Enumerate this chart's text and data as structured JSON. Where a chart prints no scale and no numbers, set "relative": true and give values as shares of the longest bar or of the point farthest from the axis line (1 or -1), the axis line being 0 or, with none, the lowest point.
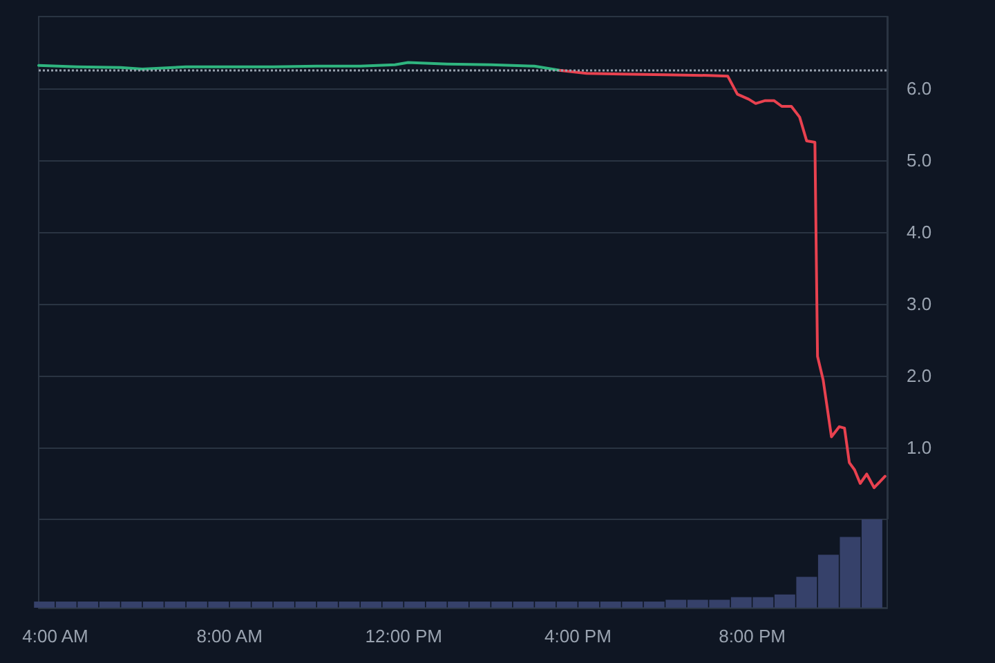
{
  "chart_data": [
    {
      "type": "line",
      "xlim": [
        3.62,
        23.1
      ],
      "ylim": [
        0,
        7
      ],
      "yticks": [
        {
          "value": 1,
          "label": "1.0"
        },
        {
          "value": 2,
          "label": "2.0"
        },
        {
          "value": 3,
          "label": "3.0"
        },
        {
          "value": 4,
          "label": "4.0"
        },
        {
          "value": 5,
          "label": "5.0"
        },
        {
          "value": 6,
          "label": "6.0"
        }
      ],
      "tick_labels": "y",
      "grid": "y",
      "marker": "none",
      "line_style": "solid",
      "series": [
        {
          "color": "#2fb57f",
          "x": [
            3.62,
            4.5,
            5.5,
            6.0,
            7.0,
            8.0,
            9.0,
            10.0,
            11.0,
            11.8,
            12.1,
            13.0,
            14.0,
            15.0,
            15.6
          ],
          "values": [
            6.32,
            6.3,
            6.29,
            6.27,
            6.3,
            6.3,
            6.3,
            6.31,
            6.31,
            6.33,
            6.36,
            6.34,
            6.33,
            6.31,
            6.25
          ]
        },
        {
          "color": "#e8414f",
          "x": [
            15.6,
            16.2,
            17.0,
            18.0,
            19.0,
            19.44,
            19.66,
            19.92,
            20.08,
            20.3,
            20.5,
            20.68,
            20.9,
            21.09,
            21.25,
            21.44,
            21.5,
            21.63,
            21.82,
            22.0,
            22.12,
            22.23,
            22.35,
            22.48,
            22.63,
            22.8,
            23.05
          ],
          "values": [
            6.25,
            6.21,
            6.2,
            6.19,
            6.18,
            6.17,
            5.92,
            5.85,
            5.79,
            5.83,
            5.83,
            5.75,
            5.75,
            5.6,
            5.27,
            5.25,
            2.27,
            1.94,
            1.15,
            1.29,
            1.27,
            0.79,
            0.69,
            0.5,
            0.63,
            0.44,
            0.6
          ]
        }
      ],
      "ref_lines": [
        {
          "axis": "y",
          "value": 6.25,
          "color": "#9aa3b0",
          "line_style": "dotted"
        }
      ]
    },
    {
      "type": "bar",
      "relative": true,
      "color": "#36416a",
      "xlim": [
        3.62,
        23.1
      ],
      "xticks": [
        {
          "value": 4,
          "label": "4:00 AM"
        },
        {
          "value": 8,
          "label": "8:00 AM"
        },
        {
          "value": 12,
          "label": "12:00 PM"
        },
        {
          "value": 16,
          "label": "4:00 PM"
        },
        {
          "value": 20,
          "label": "8:00 PM"
        }
      ],
      "tick_labels": "x",
      "x": [
        3.75,
        4.25,
        4.75,
        5.25,
        5.75,
        6.25,
        6.75,
        7.25,
        7.75,
        8.25,
        8.75,
        9.25,
        9.75,
        10.25,
        10.75,
        11.25,
        11.75,
        12.25,
        12.75,
        13.25,
        13.75,
        14.25,
        14.75,
        15.25,
        15.75,
        16.25,
        16.75,
        17.25,
        17.75,
        18.25,
        18.75,
        19.25,
        19.75,
        20.25,
        20.75,
        21.25,
        21.75,
        22.25,
        22.75
      ],
      "values": [
        0.07,
        0.07,
        0.07,
        0.07,
        0.07,
        0.07,
        0.07,
        0.07,
        0.07,
        0.07,
        0.07,
        0.07,
        0.07,
        0.07,
        0.07,
        0.07,
        0.07,
        0.07,
        0.07,
        0.07,
        0.07,
        0.07,
        0.07,
        0.07,
        0.07,
        0.07,
        0.07,
        0.07,
        0.07,
        0.09,
        0.09,
        0.09,
        0.12,
        0.12,
        0.15,
        0.35,
        0.6,
        0.8,
        1
      ]
    }
  ]
}
